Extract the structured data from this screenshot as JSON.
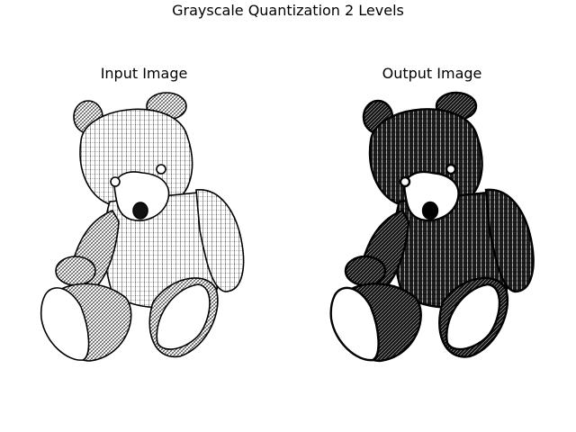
{
  "figure": {
    "title": "Grayscale Quantization 2 Levels"
  },
  "panels": [
    {
      "title": "Input Image",
      "subject": "teddy-bear-line-drawing",
      "rendering": "fine-hatched grayscale"
    },
    {
      "title": "Output Image",
      "subject": "teddy-bear-line-drawing",
      "rendering": "binarized (2 levels), darker"
    }
  ],
  "colors": {
    "ink": "#000000",
    "background": "#ffffff",
    "output_fill": "#2a2a2a"
  }
}
